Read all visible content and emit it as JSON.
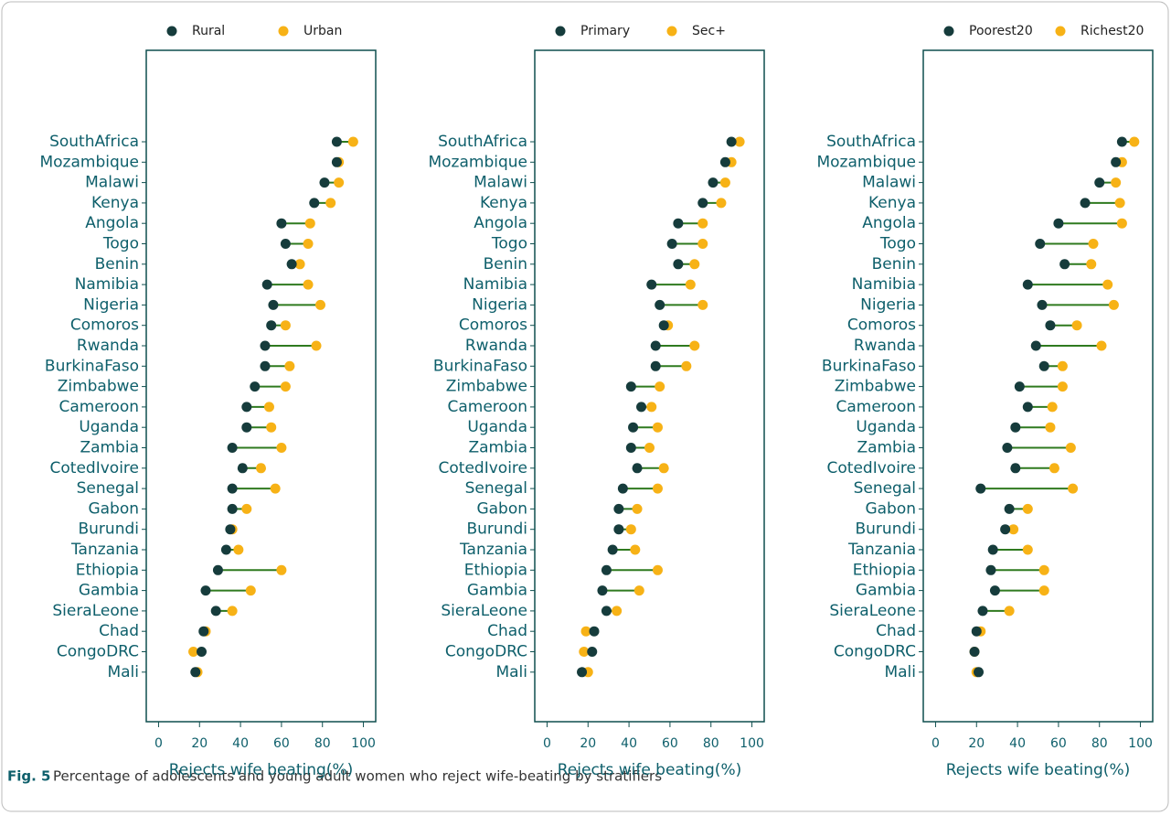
{
  "chart_data": [
    {
      "type": "dumbbell",
      "xlabel": "Rejects wife beating(%)",
      "xlim": [
        -6,
        106
      ],
      "xticks": [
        0,
        20,
        40,
        60,
        80,
        100
      ],
      "connector_color": "#2f7a1f",
      "categories": [
        "SouthAfrica",
        "Mozambique",
        "Malawi",
        "Kenya",
        "Angola",
        "Togo",
        "Benin",
        "Namibia",
        "Nigeria",
        "Comoros",
        "Rwanda",
        "BurkinaFaso",
        "Zimbabwe",
        "Cameroon",
        "Uganda",
        "Zambia",
        "CotedIvoire",
        "Senegal",
        "Gabon",
        "Burundi",
        "Tanzania",
        "Ethiopia",
        "Gambia",
        "SieraLeone",
        "Chad",
        "CongoDRC",
        "Mali"
      ],
      "series": [
        {
          "name": "Rural",
          "color": "#163c3c",
          "values": [
            87,
            87,
            81,
            76,
            60,
            62,
            65,
            53,
            56,
            55,
            52,
            52,
            47,
            43,
            43,
            36,
            41,
            36,
            36,
            35,
            33,
            29,
            23,
            28,
            22,
            21,
            18
          ]
        },
        {
          "name": "Urban",
          "color": "#f7b216",
          "values": [
            95,
            88,
            88,
            84,
            74,
            73,
            69,
            73,
            79,
            62,
            77,
            64,
            62,
            54,
            55,
            60,
            50,
            57,
            43,
            36,
            39,
            60,
            45,
            36,
            23,
            17,
            19
          ]
        }
      ]
    },
    {
      "type": "dumbbell",
      "xlabel": "Rejects wife beating(%)",
      "xlim": [
        -6,
        106
      ],
      "xticks": [
        0,
        20,
        40,
        60,
        80,
        100
      ],
      "connector_color": "#2f7a1f",
      "categories": [
        "SouthAfrica",
        "Mozambique",
        "Malawi",
        "Kenya",
        "Angola",
        "Togo",
        "Benin",
        "Namibia",
        "Nigeria",
        "Comoros",
        "Rwanda",
        "BurkinaFaso",
        "Zimbabwe",
        "Cameroon",
        "Uganda",
        "Zambia",
        "CotedIvoire",
        "Senegal",
        "Gabon",
        "Burundi",
        "Tanzania",
        "Ethiopia",
        "Gambia",
        "SieraLeone",
        "Chad",
        "CongoDRC",
        "Mali"
      ],
      "series": [
        {
          "name": "Primary",
          "color": "#163c3c",
          "values": [
            90,
            87,
            81,
            76,
            64,
            61,
            64,
            51,
            55,
            57,
            53,
            53,
            41,
            46,
            42,
            41,
            44,
            37,
            35,
            35,
            32,
            29,
            27,
            29,
            23,
            22,
            17
          ]
        },
        {
          "name": "Sec+",
          "color": "#f7b216",
          "values": [
            94,
            90,
            87,
            85,
            76,
            76,
            72,
            70,
            76,
            59,
            72,
            68,
            55,
            51,
            54,
            50,
            57,
            54,
            44,
            41,
            43,
            54,
            45,
            34,
            19,
            18,
            20
          ]
        }
      ]
    },
    {
      "type": "dumbbell",
      "xlabel": "Rejects wife beating(%)",
      "xlim": [
        -6,
        106
      ],
      "xticks": [
        0,
        20,
        40,
        60,
        80,
        100
      ],
      "connector_color": "#2f7a1f",
      "categories": [
        "SouthAfrica",
        "Mozambique",
        "Malawi",
        "Kenya",
        "Angola",
        "Togo",
        "Benin",
        "Namibia",
        "Nigeria",
        "Comoros",
        "Rwanda",
        "BurkinaFaso",
        "Zimbabwe",
        "Cameroon",
        "Uganda",
        "Zambia",
        "CotedIvoire",
        "Senegal",
        "Gabon",
        "Burundi",
        "Tanzania",
        "Ethiopia",
        "Gambia",
        "SieraLeone",
        "Chad",
        "CongoDRC",
        "Mali"
      ],
      "series": [
        {
          "name": "Poorest20",
          "color": "#163c3c",
          "values": [
            91,
            88,
            80,
            73,
            60,
            51,
            63,
            45,
            52,
            56,
            49,
            53,
            41,
            45,
            39,
            35,
            39,
            22,
            36,
            34,
            28,
            27,
            29,
            23,
            20,
            19,
            21
          ]
        },
        {
          "name": "Richest20",
          "color": "#f7b216",
          "values": [
            97,
            91,
            88,
            90,
            91,
            77,
            76,
            84,
            87,
            69,
            81,
            62,
            62,
            57,
            56,
            66,
            58,
            67,
            45,
            38,
            45,
            53,
            53,
            36,
            22,
            19,
            20
          ]
        }
      ]
    }
  ],
  "caption": {
    "label": "Fig. 5",
    "text": "Percentage of adolescents and young adult women who reject wife-beating by stratifiers"
  }
}
